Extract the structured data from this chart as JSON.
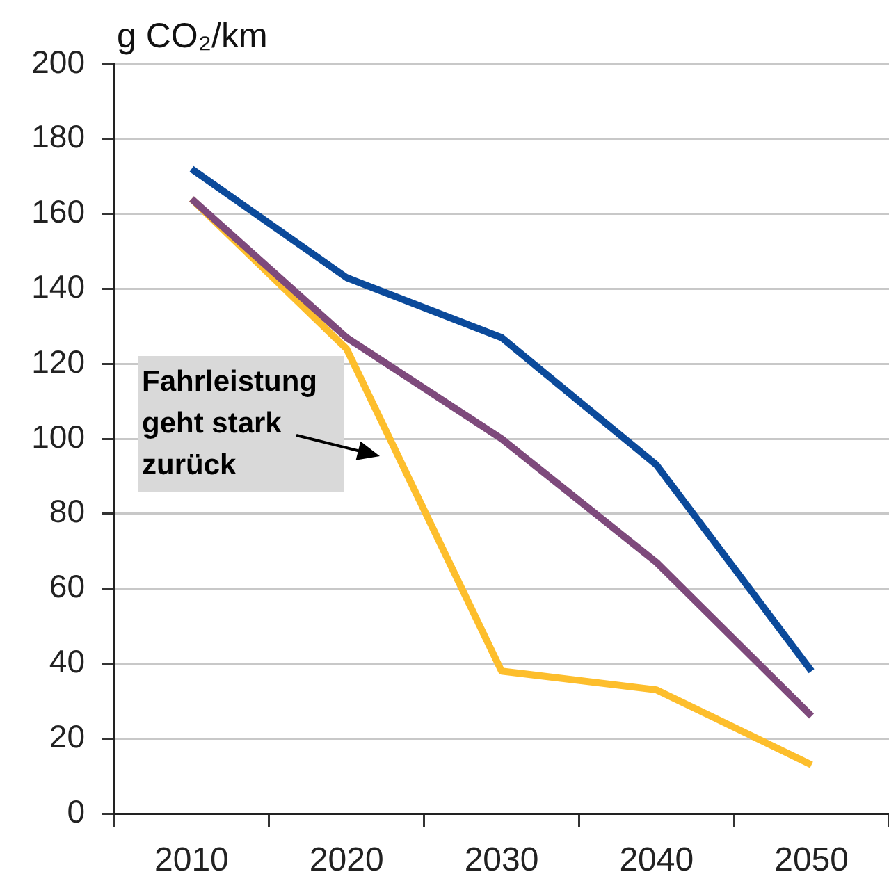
{
  "chart_data": {
    "type": "line",
    "ylabel": "g CO₂/km",
    "categories": [
      "2010",
      "2020",
      "2030",
      "2040",
      "2050"
    ],
    "series": [
      {
        "color": "#0b4a9b",
        "values": [
          172,
          143,
          127,
          93,
          38
        ]
      },
      {
        "color": "#7e4a7c",
        "values": [
          164,
          127,
          100,
          67,
          26
        ]
      },
      {
        "color": "#fdbe2c",
        "values": [
          164,
          124,
          38,
          33,
          13
        ]
      }
    ],
    "ylim": [
      0,
      200
    ],
    "yticks": [
      0,
      20,
      40,
      60,
      80,
      100,
      120,
      140,
      160,
      180,
      200
    ],
    "grid": "y",
    "marker": "none",
    "annotations": [
      "Fahrleistung geht stark zurück"
    ]
  }
}
